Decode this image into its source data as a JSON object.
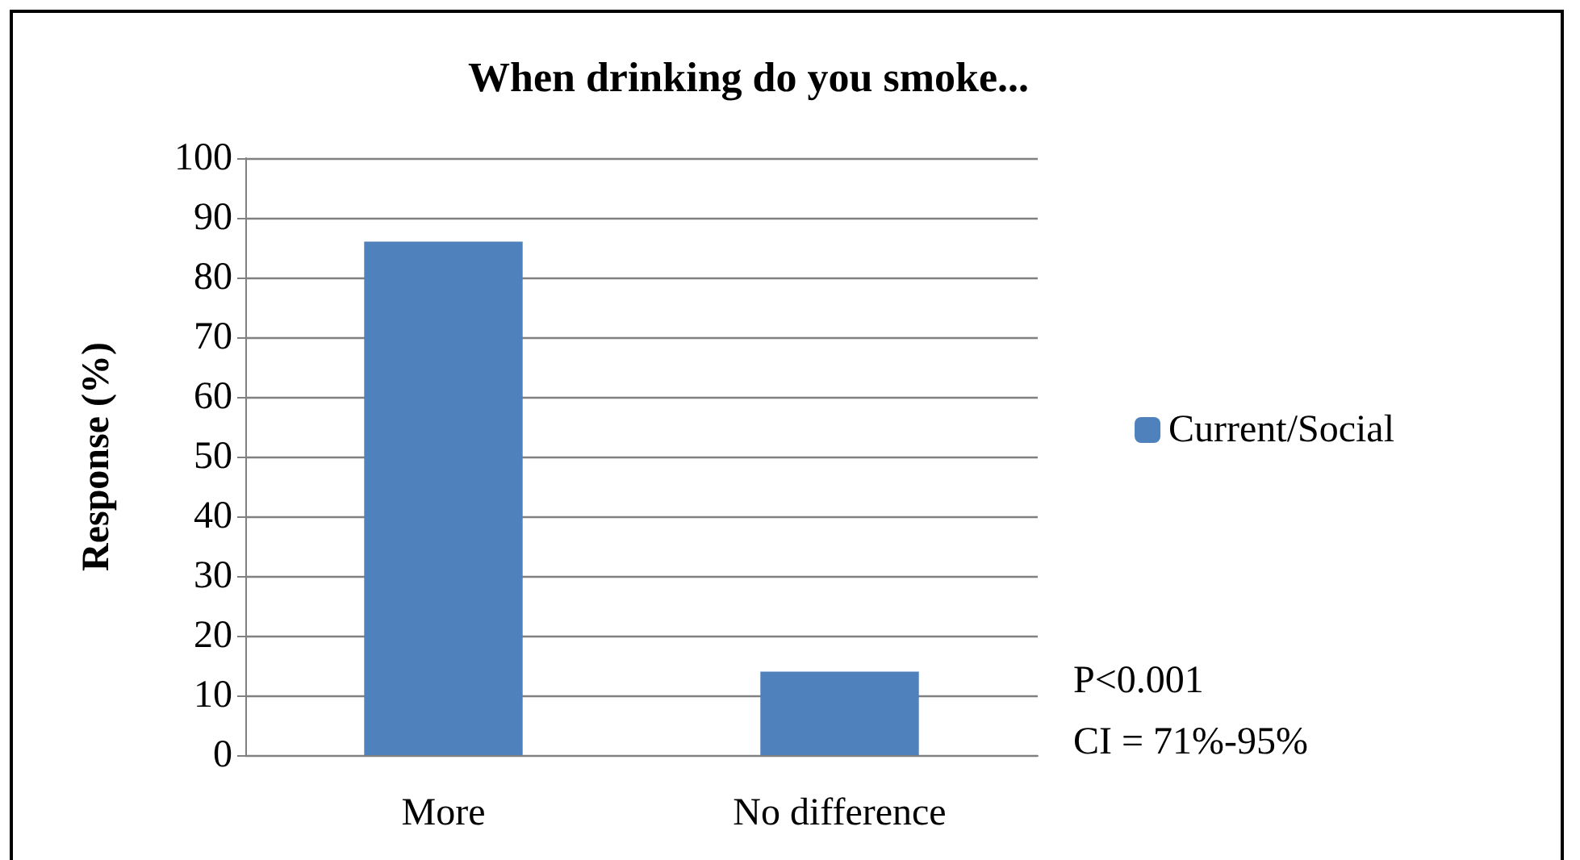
{
  "chart_data": {
    "type": "bar",
    "title": "When drinking do you smoke...",
    "ylabel": "Response (%)",
    "categories": [
      "More",
      "No difference"
    ],
    "series": [
      {
        "name": "Current/Social",
        "color": "#4f81bd",
        "values": [
          86,
          14
        ]
      }
    ],
    "ylim": [
      0,
      100
    ],
    "yticks": [
      0,
      10,
      20,
      30,
      40,
      50,
      60,
      70,
      80,
      90,
      100
    ],
    "grid": "y",
    "legend": "right",
    "annotations": [
      "P<0.001",
      "CI = 71%-95%"
    ]
  }
}
